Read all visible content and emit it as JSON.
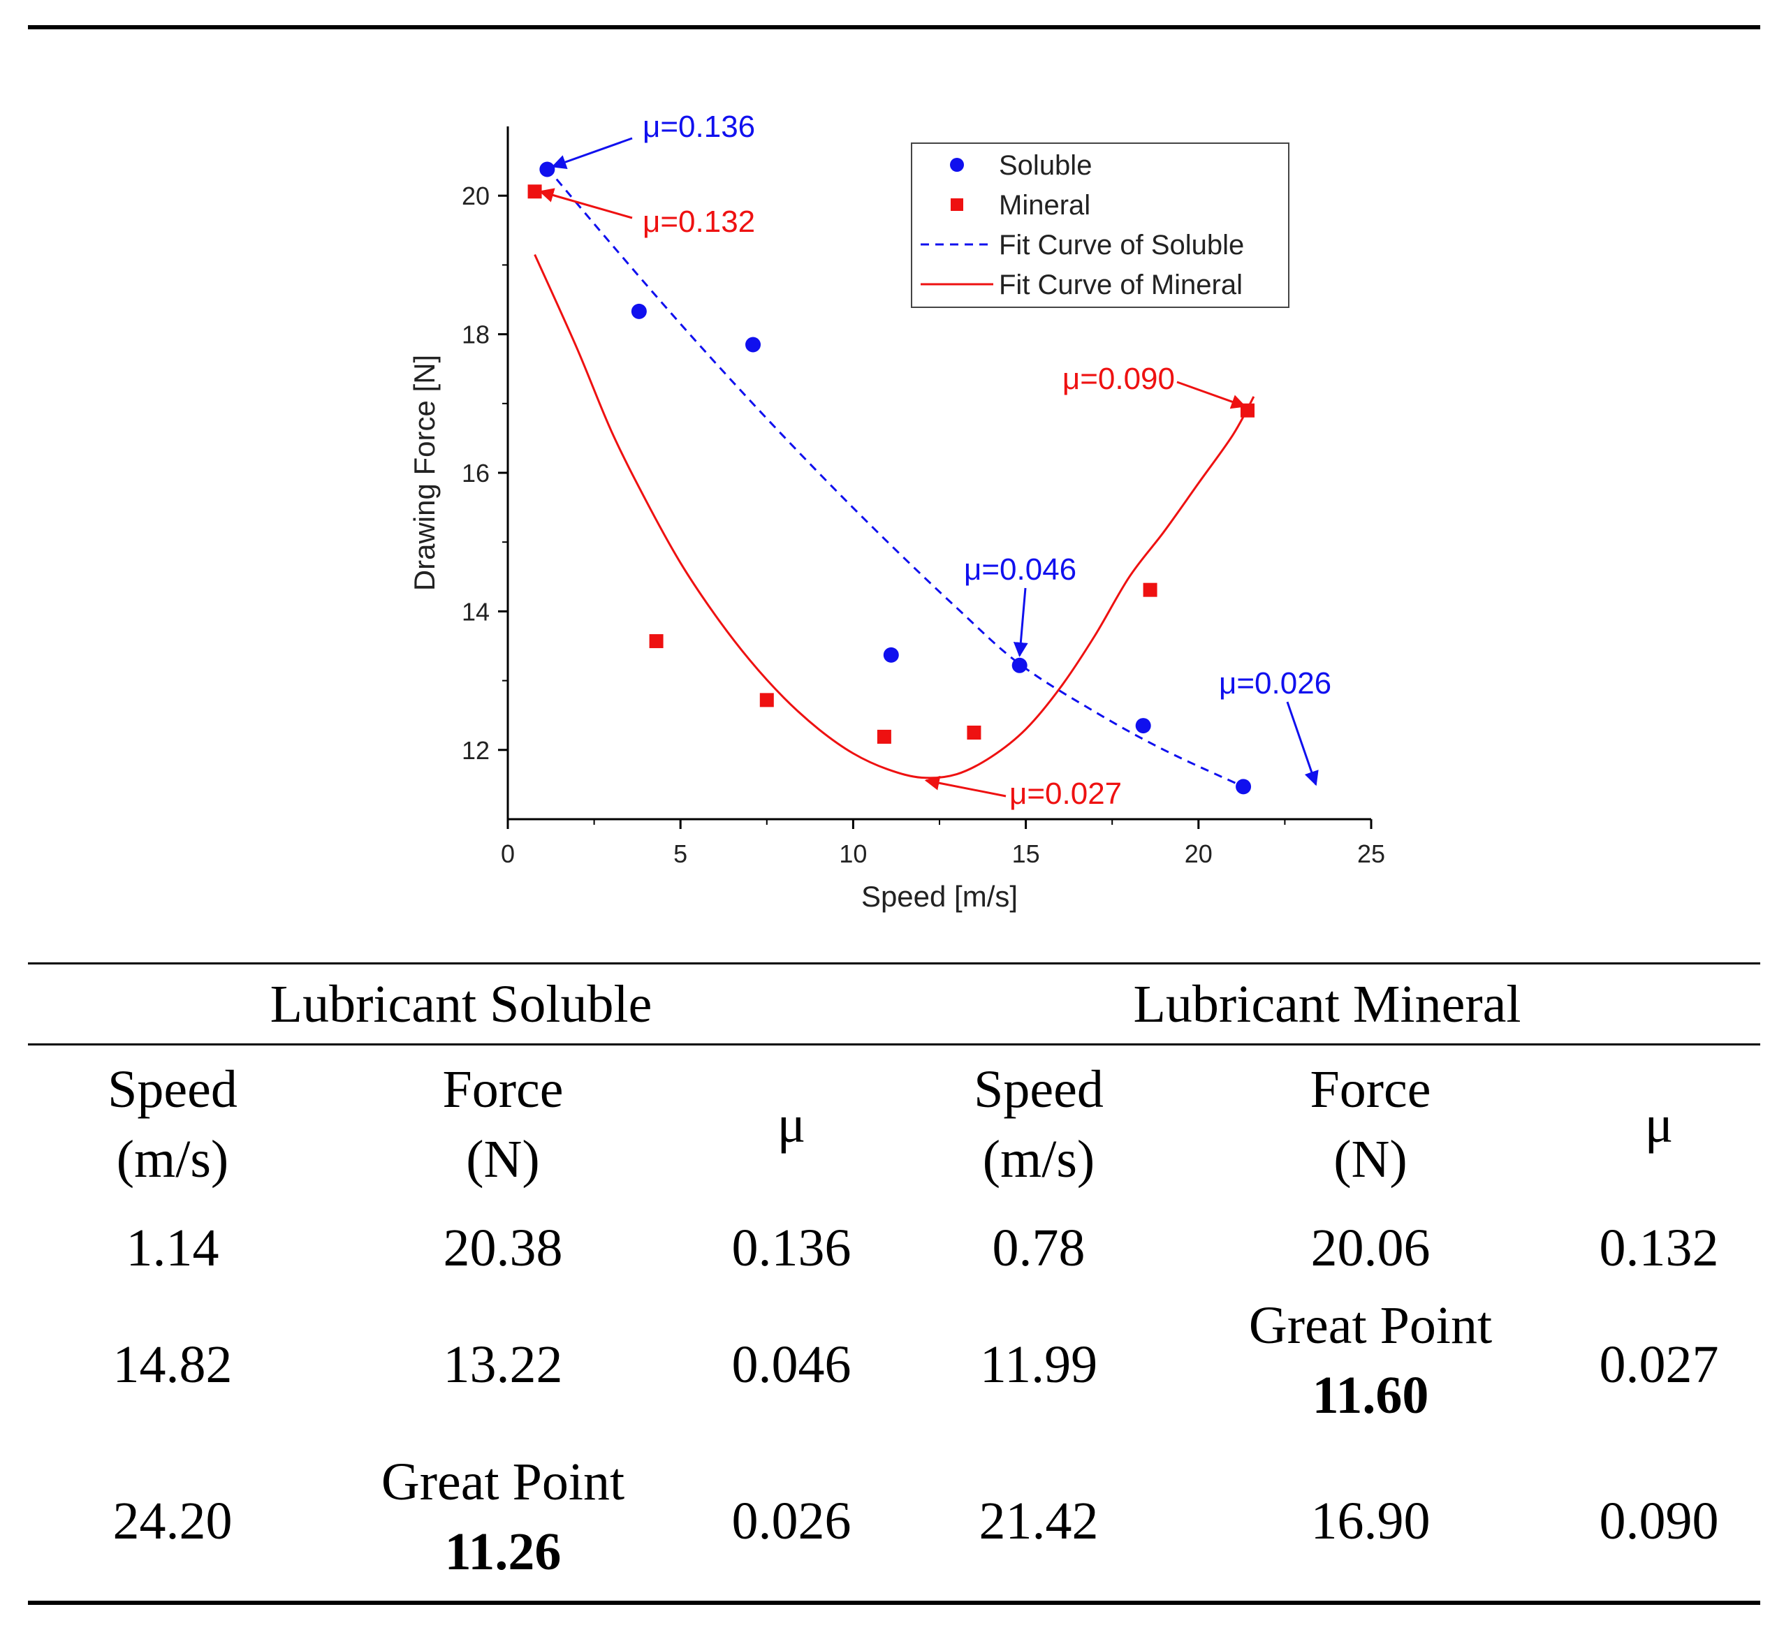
{
  "chart_data": {
    "type": "scatter",
    "xlabel": "Speed [m/s]",
    "ylabel": "Drawing Force [N]",
    "xlim": [
      0,
      25
    ],
    "ylim": [
      11,
      21
    ],
    "x_ticks": [
      "0",
      "5",
      "10",
      "15",
      "20",
      "25"
    ],
    "y_ticks": [
      "12",
      "14",
      "16",
      "18",
      "20"
    ],
    "grid": false,
    "legend_position": "top-right",
    "colors": {
      "soluble": "#1010ee",
      "mineral": "#ee1111"
    },
    "series": [
      {
        "name": "Soluble",
        "marker": "circle",
        "x": [
          1.14,
          3.8,
          7.1,
          11.1,
          14.82,
          18.4,
          21.3
        ],
        "y": [
          20.38,
          18.33,
          17.85,
          13.37,
          13.22,
          12.35,
          11.47
        ]
      },
      {
        "name": "Mineral",
        "marker": "square",
        "x": [
          0.78,
          4.3,
          7.5,
          10.9,
          13.5,
          18.6,
          21.42
        ],
        "y": [
          20.06,
          13.57,
          12.72,
          12.19,
          12.25,
          14.31,
          16.9
        ]
      }
    ],
    "fits": [
      {
        "name": "Fit Curve of Soluble",
        "style": "dashed",
        "x": [
          1.14,
          3.0,
          5.0,
          7.0,
          9.0,
          11.0,
          13.0,
          14.82,
          17.0,
          19.0,
          21.3
        ],
        "y": [
          20.4,
          19.3,
          18.15,
          17.05,
          16.0,
          15.0,
          14.05,
          13.24,
          12.55,
          12.0,
          11.47
        ]
      },
      {
        "name": "Fit Curve of Mineral",
        "style": "solid",
        "x": [
          0.78,
          2.0,
          3.0,
          4.0,
          5.0,
          6.0,
          7.0,
          8.0,
          9.0,
          10.0,
          11.0,
          11.99,
          13.0,
          14.0,
          15.0,
          16.0,
          17.0,
          18.0,
          19.0,
          20.0,
          21.0,
          21.6
        ],
        "y": [
          19.15,
          17.8,
          16.6,
          15.6,
          14.7,
          13.95,
          13.3,
          12.75,
          12.3,
          11.95,
          11.72,
          11.6,
          11.65,
          11.9,
          12.3,
          12.9,
          13.65,
          14.5,
          15.15,
          15.85,
          16.55,
          17.1
        ]
      }
    ],
    "annotations": [
      {
        "text": "μ=0.136",
        "color": "soluble",
        "x": 1.14,
        "y": 20.38
      },
      {
        "text": "μ=0.132",
        "color": "mineral",
        "x": 0.78,
        "y": 20.06
      },
      {
        "text": "μ=0.090",
        "color": "mineral",
        "x": 21.42,
        "y": 16.9
      },
      {
        "text": "μ=0.046",
        "color": "soluble",
        "x": 14.82,
        "y": 13.22
      },
      {
        "text": "μ=0.026",
        "color": "soluble",
        "x": 23.4,
        "y": 11.5
      },
      {
        "text": "μ=0.027",
        "color": "mineral",
        "x": 11.99,
        "y": 11.6
      }
    ]
  },
  "table": {
    "groups": [
      "Lubricant Soluble",
      "Lubricant Mineral"
    ],
    "columns": [
      {
        "line1": "Speed",
        "line2": "(m/s)"
      },
      {
        "line1": "Force",
        "line2": "(N)"
      },
      {
        "line1": "μ",
        "line2": ""
      },
      {
        "line1": "Speed",
        "line2": "(m/s)"
      },
      {
        "line1": "Force",
        "line2": "(N)"
      },
      {
        "line1": "μ",
        "line2": ""
      }
    ],
    "rows": [
      {
        "cells": [
          "1.14",
          "20.38",
          "0.136",
          "0.78",
          "20.06",
          "0.132"
        ]
      },
      {
        "cells": [
          "14.82",
          "13.22",
          "0.046",
          "11.99",
          "11.60",
          "0.027"
        ],
        "great_point_col": 4
      },
      {
        "cells": [
          "24.20",
          "11.26",
          "0.026",
          "21.42",
          "16.90",
          "0.090"
        ],
        "great_point_col": 1
      }
    ],
    "great_point_label": "Great Point"
  }
}
